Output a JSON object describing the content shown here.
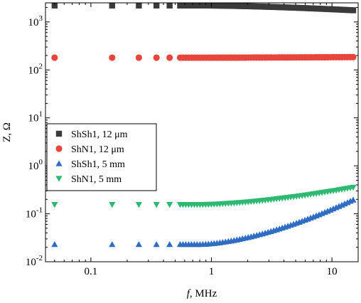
{
  "chart_data": {
    "type": "scatter",
    "xlabel": {
      "italic": "f",
      "rest": ", MHz"
    },
    "ylabel": "Z, Ω",
    "x_scale": "log",
    "y_scale": "log",
    "xlim": [
      0.042,
      16.5
    ],
    "ylim": [
      0.01,
      2500
    ],
    "grid": false,
    "legend_position": "middle-left",
    "x_ticks": [
      {
        "value": 0.1,
        "label": "0.1"
      },
      {
        "value": 1,
        "label": "1"
      },
      {
        "value": 10,
        "label": "10"
      }
    ],
    "y_ticks": [
      {
        "value": 0.01,
        "base": "10",
        "exp": "-2"
      },
      {
        "value": 0.1,
        "base": "10",
        "exp": "-1"
      },
      {
        "value": 1,
        "base": "10",
        "exp": "0"
      },
      {
        "value": 10,
        "base": "10",
        "exp": "1"
      },
      {
        "value": 100,
        "base": "10",
        "exp": "2"
      },
      {
        "value": 1000,
        "base": "10",
        "exp": "3"
      }
    ],
    "series": [
      {
        "name": "ShSh1, 12 μm",
        "marker": "square",
        "color": "#3a3a3a",
        "z_at_low": 2200,
        "z_at_high": 1750
      },
      {
        "name": "ShN1, 12 μm",
        "marker": "circle",
        "color": "#e8453c",
        "z_at_low": 180,
        "z_at_high": 185
      },
      {
        "name": "ShSh1, 5 mm",
        "marker": "triangle-up",
        "color": "#2f6cc2",
        "z_at_low": 0.023,
        "z_at_high": 0.195
      },
      {
        "name": "ShN1, 5 mm",
        "marker": "triangle-down",
        "color": "#2eb872",
        "z_at_low": 0.155,
        "z_at_high": 0.355
      }
    ]
  }
}
